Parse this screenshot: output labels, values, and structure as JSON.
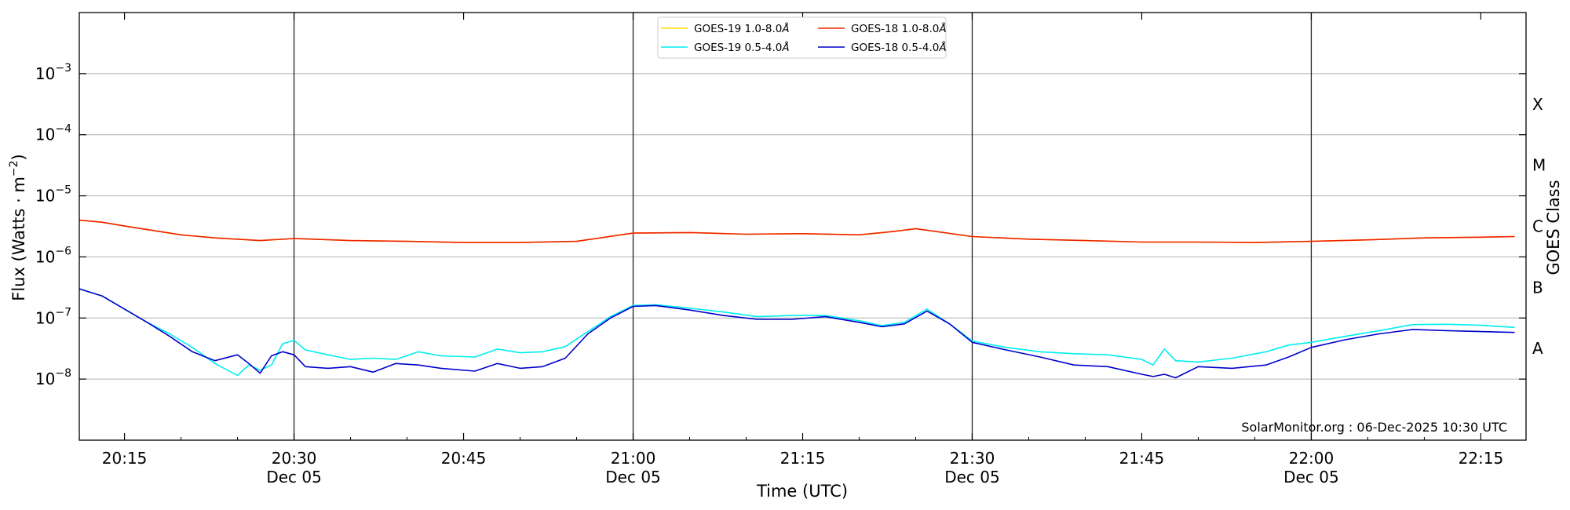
{
  "chart_data": {
    "type": "line",
    "xlabel": "Time (UTC)",
    "ylabel": "Flux (Watts · m",
    "ylabel_sup": "−2",
    "ylabel_close": ")",
    "y2label": "GOES Class",
    "yscale": "log",
    "ylim": [
      1e-09,
      0.01
    ],
    "xlim": [
      "2025-12-05 20:11",
      "2025-12-05 22:19"
    ],
    "grid": "horizontal",
    "legend_position": "top-center",
    "credit": "SolarMonitor.org : 06-Dec-2025 10:30 UTC",
    "y_ticks": [
      {
        "value": 0.001,
        "base": "10",
        "exp": "−3"
      },
      {
        "value": 0.0001,
        "base": "10",
        "exp": "−4"
      },
      {
        "value": 1e-05,
        "base": "10",
        "exp": "−5"
      },
      {
        "value": 1e-06,
        "base": "10",
        "exp": "−6"
      },
      {
        "value": 1e-07,
        "base": "10",
        "exp": "−7"
      },
      {
        "value": 1e-08,
        "base": "10",
        "exp": "−8"
      }
    ],
    "class_labels": [
      {
        "label": "X",
        "value": 0.000316
      },
      {
        "label": "M",
        "value": 3.16e-05
      },
      {
        "label": "C",
        "value": 3.16e-06
      },
      {
        "label": "B",
        "value": 3.16e-07
      },
      {
        "label": "A",
        "value": 3.16e-08
      }
    ],
    "x_ticks": [
      {
        "time": "20:15",
        "label": "20:15",
        "date": ""
      },
      {
        "time": "20:30",
        "label": "20:30",
        "date": "Dec 05"
      },
      {
        "time": "20:45",
        "label": "20:45",
        "date": ""
      },
      {
        "time": "21:00",
        "label": "21:00",
        "date": "Dec 05"
      },
      {
        "time": "21:15",
        "label": "21:15",
        "date": ""
      },
      {
        "time": "21:30",
        "label": "21:30",
        "date": "Dec 05"
      },
      {
        "time": "21:45",
        "label": "21:45",
        "date": ""
      },
      {
        "time": "22:00",
        "label": "22:00",
        "date": "Dec 05"
      },
      {
        "time": "22:15",
        "label": "22:15",
        "date": ""
      }
    ],
    "vlines": [
      "20:30",
      "21:00",
      "21:30",
      "22:00"
    ],
    "series": [
      {
        "name": "GOES-19 1.0-8.0Å",
        "color": "#ffd700",
        "x": [
          "20:11",
          "20:13",
          "20:15",
          "20:17",
          "20:20",
          "20:23",
          "20:27",
          "20:30",
          "20:35",
          "20:40",
          "20:45",
          "20:50",
          "20:55",
          "21:00",
          "21:05",
          "21:10",
          "21:15",
          "21:20",
          "21:23",
          "21:25",
          "21:30",
          "21:35",
          "21:40",
          "21:45",
          "21:50",
          "21:55",
          "22:00",
          "22:05",
          "22:10",
          "22:15",
          "22:18"
        ],
        "y": [
          4e-06,
          3.7e-06,
          3.2e-06,
          2.8e-06,
          2.3e-06,
          2.05e-06,
          1.85e-06,
          2e-06,
          1.85e-06,
          1.8e-06,
          1.72e-06,
          1.72e-06,
          1.8e-06,
          2.45e-06,
          2.5e-06,
          2.35e-06,
          2.4e-06,
          2.3e-06,
          2.6e-06,
          2.9e-06,
          2.15e-06,
          1.95e-06,
          1.85e-06,
          1.75e-06,
          1.75e-06,
          1.72e-06,
          1.8e-06,
          1.9e-06,
          2.05e-06,
          2.1e-06,
          2.15e-06
        ]
      },
      {
        "name": "GOES-18 1.0-8.0Å",
        "color": "#ee2200",
        "x": [
          "20:11",
          "20:13",
          "20:15",
          "20:17",
          "20:20",
          "20:23",
          "20:27",
          "20:30",
          "20:35",
          "20:40",
          "20:45",
          "20:50",
          "20:55",
          "21:00",
          "21:05",
          "21:10",
          "21:15",
          "21:20",
          "21:23",
          "21:25",
          "21:30",
          "21:35",
          "21:40",
          "21:45",
          "21:50",
          "21:55",
          "22:00",
          "22:05",
          "22:10",
          "22:15",
          "22:18"
        ],
        "y": [
          4e-06,
          3.7e-06,
          3.2e-06,
          2.8e-06,
          2.3e-06,
          2.05e-06,
          1.85e-06,
          2e-06,
          1.85e-06,
          1.8e-06,
          1.72e-06,
          1.72e-06,
          1.8e-06,
          2.45e-06,
          2.5e-06,
          2.35e-06,
          2.4e-06,
          2.3e-06,
          2.6e-06,
          2.9e-06,
          2.15e-06,
          1.95e-06,
          1.85e-06,
          1.75e-06,
          1.75e-06,
          1.72e-06,
          1.8e-06,
          1.9e-06,
          2.05e-06,
          2.1e-06,
          2.15e-06
        ]
      },
      {
        "name": "GOES-19 0.5-4.0Å",
        "color": "#00eeee",
        "x": [
          "20:11",
          "20:13",
          "20:15",
          "20:17",
          "20:19",
          "20:21",
          "20:23",
          "20:25",
          "20:26",
          "20:27",
          "20:28",
          "20:29",
          "20:30",
          "20:31",
          "20:33",
          "20:35",
          "20:37",
          "20:39",
          "20:41",
          "20:43",
          "20:46",
          "20:48",
          "20:50",
          "20:52",
          "20:54",
          "20:56",
          "20:58",
          "21:00",
          "21:02",
          "21:05",
          "21:08",
          "21:11",
          "21:14",
          "21:17",
          "21:20",
          "21:22",
          "21:24",
          "21:26",
          "21:28",
          "21:30",
          "21:33",
          "21:36",
          "21:39",
          "21:42",
          "21:45",
          "21:46",
          "21:47",
          "21:48",
          "21:50",
          "21:53",
          "21:56",
          "21:58",
          "22:00",
          "22:03",
          "22:06",
          "22:09",
          "22:12",
          "22:15",
          "22:18"
        ],
        "y": [
          3e-07,
          2.3e-07,
          1.4e-07,
          8.5e-08,
          5.5e-08,
          3.3e-08,
          1.8e-08,
          1.15e-08,
          1.7e-08,
          1.4e-08,
          1.7e-08,
          3.8e-08,
          4.3e-08,
          3e-08,
          2.5e-08,
          2.1e-08,
          2.2e-08,
          2.1e-08,
          2.8e-08,
          2.4e-08,
          2.3e-08,
          3.1e-08,
          2.7e-08,
          2.8e-08,
          3.4e-08,
          6e-08,
          1.05e-07,
          1.6e-07,
          1.65e-07,
          1.45e-07,
          1.25e-07,
          1.05e-07,
          1.1e-07,
          1.1e-07,
          9e-08,
          7.5e-08,
          8.5e-08,
          1.4e-07,
          8e-08,
          4.2e-08,
          3.3e-08,
          2.8e-08,
          2.6e-08,
          2.5e-08,
          2.1e-08,
          1.7e-08,
          3.1e-08,
          2e-08,
          1.9e-08,
          2.2e-08,
          2.8e-08,
          3.6e-08,
          4e-08,
          5e-08,
          6.2e-08,
          7.8e-08,
          7.9e-08,
          7.6e-08,
          7e-08
        ]
      },
      {
        "name": "GOES-18 0.5-4.0Å",
        "color": "#0000cc",
        "x": [
          "20:11",
          "20:13",
          "20:15",
          "20:17",
          "20:19",
          "20:21",
          "20:23",
          "20:25",
          "20:26",
          "20:27",
          "20:28",
          "20:29",
          "20:30",
          "20:31",
          "20:33",
          "20:35",
          "20:37",
          "20:39",
          "20:41",
          "20:43",
          "20:46",
          "20:48",
          "20:50",
          "20:52",
          "20:54",
          "20:56",
          "20:58",
          "21:00",
          "21:02",
          "21:05",
          "21:08",
          "21:11",
          "21:14",
          "21:17",
          "21:20",
          "21:22",
          "21:24",
          "21:26",
          "21:28",
          "21:30",
          "21:33",
          "21:36",
          "21:39",
          "21:42",
          "21:45",
          "21:46",
          "21:47",
          "21:48",
          "21:50",
          "21:53",
          "21:56",
          "21:58",
          "22:00",
          "22:03",
          "22:06",
          "22:09",
          "22:12",
          "22:15",
          "22:18"
        ],
        "y": [
          3e-07,
          2.3e-07,
          1.4e-07,
          8.5e-08,
          5e-08,
          2.8e-08,
          2e-08,
          2.5e-08,
          1.8e-08,
          1.25e-08,
          2.4e-08,
          2.8e-08,
          2.5e-08,
          1.6e-08,
          1.5e-08,
          1.6e-08,
          1.3e-08,
          1.8e-08,
          1.7e-08,
          1.5e-08,
          1.35e-08,
          1.8e-08,
          1.5e-08,
          1.6e-08,
          2.2e-08,
          5.5e-08,
          1e-07,
          1.55e-07,
          1.6e-07,
          1.35e-07,
          1.1e-07,
          9.5e-08,
          9.5e-08,
          1.05e-07,
          8.5e-08,
          7.2e-08,
          8e-08,
          1.3e-07,
          8e-08,
          4e-08,
          3e-08,
          2.3e-08,
          1.7e-08,
          1.6e-08,
          1.2e-08,
          1.1e-08,
          1.2e-08,
          1.05e-08,
          1.6e-08,
          1.5e-08,
          1.7e-08,
          2.3e-08,
          3.3e-08,
          4.4e-08,
          5.5e-08,
          6.5e-08,
          6.2e-08,
          6e-08,
          5.8e-08
        ]
      }
    ],
    "legend": [
      {
        "label": "GOES-19 1.0-8.0",
        "unit": "Å",
        "color": "#ffd700"
      },
      {
        "label": "GOES-19 0.5-4.0",
        "unit": "Å",
        "color": "#00eeee"
      },
      {
        "label": "GOES-18 1.0-8.0",
        "unit": "Å",
        "color": "#ee2200"
      },
      {
        "label": "GOES-18 0.5-4.0",
        "unit": "Å",
        "color": "#0000cc"
      }
    ]
  }
}
